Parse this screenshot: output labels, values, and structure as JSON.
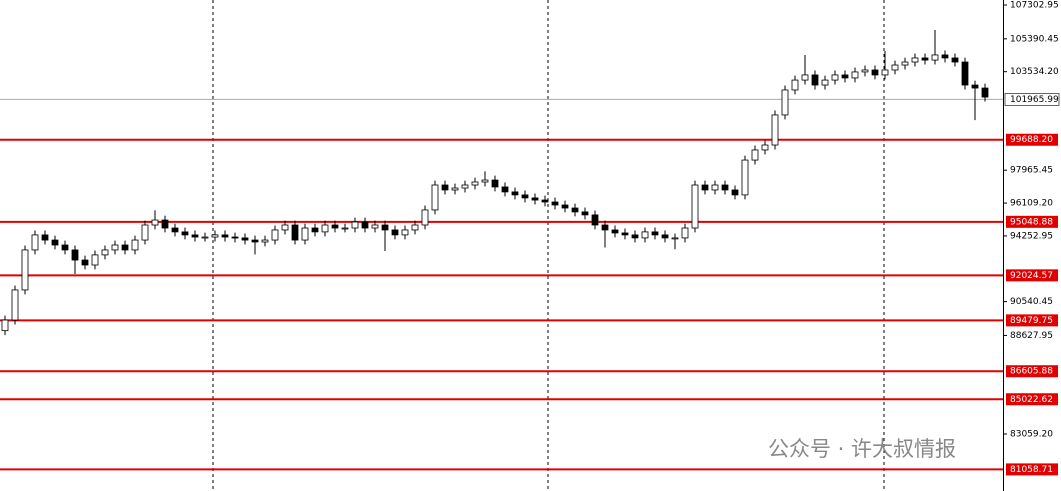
{
  "chart_data": {
    "type": "candlestick",
    "watermark": "公众号 · 许大叔情报",
    "open": [
      88900,
      89500,
      91200,
      93460,
      94310,
      94020,
      93740,
      93460,
      92890,
      92610,
      93180,
      93460,
      93740,
      93460,
      94020,
      94870,
      95150,
      94700,
      94480,
      94310,
      94190,
      94190,
      94310,
      94190,
      94140,
      94020,
      93910,
      94020,
      94590,
      94870,
      94020,
      94700,
      94480,
      94870,
      94700,
      94700,
      95040,
      94700,
      94870,
      94590,
      94310,
      94590,
      94870,
      95720,
      97130,
      96850,
      96960,
      97130,
      97300,
      97410,
      97020,
      96740,
      96570,
      96400,
      96280,
      96170,
      96000,
      95830,
      95610,
      95440,
      94870,
      94590,
      94420,
      94310,
      94140,
      94480,
      94310,
      94140,
      94140,
      94700,
      97130,
      96850,
      97130,
      96850,
      96570,
      98540,
      99110,
      99390,
      101090,
      102500,
      103060,
      103350,
      102780,
      103060,
      103350,
      103180,
      103520,
      103630,
      103350,
      103630,
      103910,
      104080,
      104310,
      104190,
      104480,
      104310,
      104080,
      102780,
      102610
    ],
    "high": [
      89750,
      91450,
      93710,
      94560,
      94560,
      94270,
      93990,
      93710,
      93140,
      93430,
      93710,
      93990,
      93990,
      94270,
      95120,
      95700,
      95400,
      94950,
      94730,
      94560,
      94440,
      94560,
      94560,
      94440,
      94390,
      94270,
      94270,
      94840,
      95120,
      95120,
      94950,
      94950,
      95120,
      95120,
      94950,
      95290,
      95290,
      95120,
      95120,
      94840,
      94840,
      95120,
      95970,
      97380,
      97380,
      97210,
      97380,
      97550,
      97900,
      97660,
      97270,
      96990,
      96820,
      96650,
      96530,
      96420,
      96250,
      96080,
      95860,
      95690,
      95120,
      94840,
      94670,
      94560,
      94730,
      94730,
      94560,
      94390,
      94950,
      97380,
      97380,
      97380,
      97380,
      97100,
      98790,
      99360,
      99640,
      101340,
      102750,
      103310,
      104480,
      103600,
      103310,
      103600,
      103600,
      103770,
      103880,
      103880,
      104700,
      104160,
      104330,
      104560,
      104560,
      105890,
      104730,
      104560,
      104330,
      103030,
      102860
    ],
    "low": [
      88650,
      89250,
      90950,
      93210,
      93770,
      93490,
      93210,
      92100,
      92360,
      92360,
      92930,
      93210,
      93210,
      93210,
      93770,
      94620,
      94450,
      94230,
      94060,
      93940,
      93940,
      93940,
      93940,
      93890,
      93770,
      93200,
      93660,
      93770,
      94340,
      93770,
      93770,
      94230,
      94230,
      94450,
      94450,
      94450,
      94450,
      94450,
      93400,
      94060,
      94060,
      94340,
      94620,
      95470,
      96600,
      96600,
      96710,
      96880,
      97050,
      96770,
      96490,
      96320,
      96150,
      96030,
      95920,
      95750,
      95580,
      95360,
      95190,
      94620,
      93600,
      94170,
      94060,
      93890,
      93890,
      94060,
      93890,
      93500,
      93890,
      94450,
      96600,
      96600,
      96600,
      96320,
      96320,
      98290,
      98860,
      99140,
      100840,
      102250,
      102810,
      102530,
      102530,
      102810,
      102930,
      102930,
      103270,
      103100,
      103100,
      103380,
      103660,
      103830,
      103940,
      103940,
      104060,
      103830,
      102530,
      100800,
      101850
    ],
    "close": [
      89500,
      91200,
      93460,
      94310,
      94020,
      93740,
      93460,
      92890,
      92610,
      93180,
      93460,
      93740,
      93460,
      94020,
      94870,
      95150,
      94700,
      94480,
      94310,
      94190,
      94190,
      94310,
      94190,
      94140,
      94020,
      93910,
      94020,
      94590,
      94870,
      94020,
      94700,
      94480,
      94870,
      94700,
      94700,
      95040,
      94700,
      94870,
      94590,
      94310,
      94590,
      94870,
      95720,
      97130,
      96850,
      96960,
      97130,
      97300,
      97410,
      97020,
      96740,
      96570,
      96400,
      96280,
      96170,
      96000,
      95830,
      95610,
      95440,
      94870,
      94590,
      94420,
      94310,
      94140,
      94480,
      94310,
      94140,
      94140,
      94700,
      97130,
      96850,
      97130,
      96850,
      96570,
      98540,
      99110,
      99390,
      101090,
      102500,
      103060,
      103350,
      102780,
      103060,
      103350,
      103180,
      103520,
      103630,
      103350,
      103630,
      103910,
      104080,
      104310,
      104190,
      104480,
      104310,
      104080,
      102780,
      102610,
      102100
    ],
    "ylim": [
      79838,
      107585
    ],
    "yticks": [
      {
        "value": 107302.95,
        "label": "107302.95"
      },
      {
        "value": 105390.45,
        "label": "105390.45"
      },
      {
        "value": 103534.2,
        "label": "103534.20"
      },
      {
        "value": 97965.45,
        "label": "97965.45"
      },
      {
        "value": 96109.2,
        "label": "96109.20"
      },
      {
        "value": 94252.95,
        "label": "94252.95"
      },
      {
        "value": 90540.45,
        "label": "90540.45"
      },
      {
        "value": 88627.95,
        "label": "88627.95"
      },
      {
        "value": 83059.2,
        "label": "83059.20"
      }
    ],
    "levels": [
      {
        "value": 99688.2,
        "label": "99688.20"
      },
      {
        "value": 95048.88,
        "label": "95048.88"
      },
      {
        "value": 92024.57,
        "label": "92024.57"
      },
      {
        "value": 89479.75,
        "label": "89479.75"
      },
      {
        "value": 86605.88,
        "label": "86605.88"
      },
      {
        "value": 85022.62,
        "label": "85022.62"
      },
      {
        "value": 81058.71,
        "label": "81058.71"
      }
    ],
    "level_color": "#e00000",
    "current_price": 101965.99
  }
}
